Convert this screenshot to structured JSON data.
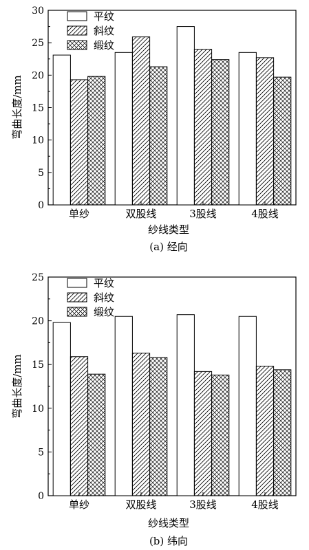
{
  "chart_data": [
    {
      "type": "bar",
      "caption": "(a) 经向",
      "xlabel": "纱线类型",
      "ylabel": "弯曲长度/mm",
      "ylim": [
        0,
        30
      ],
      "yticks": [
        0,
        5,
        10,
        15,
        20,
        25,
        30
      ],
      "legend_position": "top-left",
      "categories": [
        "单纱",
        "双股线",
        "3股线",
        "4股线"
      ],
      "series": [
        {
          "name": "平纹",
          "pattern": "none",
          "values": [
            23.1,
            23.5,
            27.5,
            23.5
          ]
        },
        {
          "name": "斜纹",
          "pattern": "diagonal",
          "values": [
            19.3,
            25.9,
            24.0,
            22.7
          ]
        },
        {
          "name": "缎纹",
          "pattern": "crosshatch",
          "values": [
            19.8,
            21.3,
            22.4,
            19.7
          ]
        }
      ]
    },
    {
      "type": "bar",
      "caption": "(b) 纬向",
      "xlabel": "纱线类型",
      "ylabel": "弯曲长度/mm",
      "ylim": [
        0,
        25
      ],
      "yticks": [
        0,
        5,
        10,
        15,
        20,
        25
      ],
      "legend_position": "top-left",
      "categories": [
        "单纱",
        "双股线",
        "3股线",
        "4股线"
      ],
      "series": [
        {
          "name": "平纹",
          "pattern": "none",
          "values": [
            19.8,
            20.5,
            20.7,
            20.5
          ]
        },
        {
          "name": "斜纹",
          "pattern": "diagonal",
          "values": [
            15.9,
            16.3,
            14.2,
            14.8
          ]
        },
        {
          "name": "缎纹",
          "pattern": "crosshatch",
          "values": [
            13.9,
            15.8,
            13.8,
            14.4
          ]
        }
      ]
    }
  ]
}
